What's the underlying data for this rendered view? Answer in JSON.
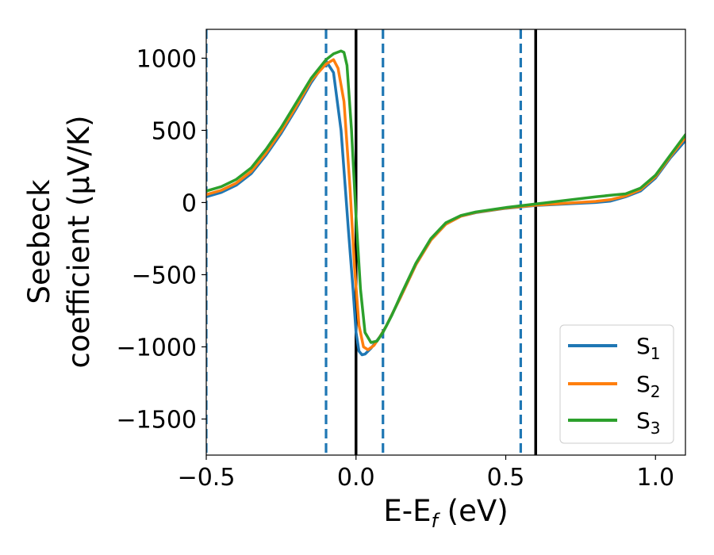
{
  "chart_data": {
    "type": "line",
    "xlabel_parts": {
      "main": "E-E",
      "sub": "f",
      "tail": " (eV)"
    },
    "ylabel_line1": "Seebeck",
    "ylabel_line2": "coefficient  (μV/K)",
    "xlim": [
      -0.5,
      1.1
    ],
    "ylim": [
      -1750,
      1200
    ],
    "xticks": [
      -0.5,
      0.0,
      0.5,
      1.0
    ],
    "xtick_labels": [
      "−0.5",
      "0.0",
      "0.5",
      "1.0"
    ],
    "yticks": [
      -1500,
      -1000,
      -500,
      0,
      500,
      1000
    ],
    "ytick_labels": [
      "−1500",
      "−1000",
      "−500",
      "0",
      "500",
      "1000"
    ],
    "grid": false,
    "legend_position": "lower-right",
    "vlines": [
      {
        "x": -0.5,
        "style": "dashed",
        "color": "#1f77b4"
      },
      {
        "x": -0.1,
        "style": "dashed",
        "color": "#1f77b4"
      },
      {
        "x": 0.0,
        "style": "solid",
        "color": "#000000"
      },
      {
        "x": 0.09,
        "style": "dashed",
        "color": "#1f77b4"
      },
      {
        "x": 0.55,
        "style": "dashed",
        "color": "#1f77b4"
      },
      {
        "x": 0.6,
        "style": "solid",
        "color": "#000000"
      }
    ],
    "series": [
      {
        "name": "S",
        "sub": "1",
        "color": "#1f77b4",
        "points": [
          [
            -0.5,
            40
          ],
          [
            -0.45,
            70
          ],
          [
            -0.4,
            120
          ],
          [
            -0.35,
            200
          ],
          [
            -0.3,
            330
          ],
          [
            -0.25,
            480
          ],
          [
            -0.2,
            650
          ],
          [
            -0.15,
            830
          ],
          [
            -0.1,
            980
          ],
          [
            -0.075,
            900
          ],
          [
            -0.05,
            500
          ],
          [
            -0.025,
            -200
          ],
          [
            -0.01,
            -600
          ],
          [
            0.0,
            -900
          ],
          [
            0.01,
            -1030
          ],
          [
            0.02,
            -1055
          ],
          [
            0.03,
            -1050
          ],
          [
            0.05,
            -1010
          ],
          [
            0.08,
            -930
          ],
          [
            0.1,
            -860
          ],
          [
            0.15,
            -650
          ],
          [
            0.2,
            -430
          ],
          [
            0.25,
            -260
          ],
          [
            0.3,
            -150
          ],
          [
            0.35,
            -95
          ],
          [
            0.4,
            -70
          ],
          [
            0.5,
            -40
          ],
          [
            0.6,
            -20
          ],
          [
            0.7,
            -10
          ],
          [
            0.8,
            0
          ],
          [
            0.85,
            10
          ],
          [
            0.9,
            40
          ],
          [
            0.95,
            80
          ],
          [
            1.0,
            170
          ],
          [
            1.05,
            310
          ],
          [
            1.1,
            430
          ]
        ]
      },
      {
        "name": "S",
        "sub": "2",
        "color": "#ff7f0e",
        "points": [
          [
            -0.5,
            55
          ],
          [
            -0.45,
            85
          ],
          [
            -0.4,
            135
          ],
          [
            -0.35,
            215
          ],
          [
            -0.3,
            345
          ],
          [
            -0.25,
            495
          ],
          [
            -0.2,
            665
          ],
          [
            -0.15,
            845
          ],
          [
            -0.1,
            960
          ],
          [
            -0.075,
            990
          ],
          [
            -0.06,
            930
          ],
          [
            -0.04,
            700
          ],
          [
            -0.02,
            100
          ],
          [
            -0.005,
            -450
          ],
          [
            0.01,
            -850
          ],
          [
            0.025,
            -1000
          ],
          [
            0.04,
            -1020
          ],
          [
            0.06,
            -990
          ],
          [
            0.08,
            -930
          ],
          [
            0.1,
            -860
          ],
          [
            0.15,
            -650
          ],
          [
            0.2,
            -430
          ],
          [
            0.25,
            -260
          ],
          [
            0.3,
            -150
          ],
          [
            0.35,
            -95
          ],
          [
            0.4,
            -68
          ],
          [
            0.5,
            -38
          ],
          [
            0.6,
            -18
          ],
          [
            0.7,
            -5
          ],
          [
            0.8,
            8
          ],
          [
            0.85,
            20
          ],
          [
            0.9,
            45
          ],
          [
            0.95,
            90
          ],
          [
            1.0,
            180
          ],
          [
            1.05,
            320
          ],
          [
            1.1,
            450
          ]
        ]
      },
      {
        "name": "S",
        "sub": "3",
        "color": "#2ca02c",
        "points": [
          [
            -0.5,
            80
          ],
          [
            -0.45,
            110
          ],
          [
            -0.4,
            160
          ],
          [
            -0.35,
            240
          ],
          [
            -0.3,
            370
          ],
          [
            -0.25,
            520
          ],
          [
            -0.2,
            690
          ],
          [
            -0.15,
            860
          ],
          [
            -0.1,
            990
          ],
          [
            -0.075,
            1030
          ],
          [
            -0.05,
            1050
          ],
          [
            -0.04,
            1040
          ],
          [
            -0.03,
            950
          ],
          [
            -0.015,
            500
          ],
          [
            0.0,
            -100
          ],
          [
            0.015,
            -600
          ],
          [
            0.03,
            -900
          ],
          [
            0.05,
            -970
          ],
          [
            0.07,
            -960
          ],
          [
            0.09,
            -900
          ],
          [
            0.12,
            -780
          ],
          [
            0.15,
            -640
          ],
          [
            0.2,
            -420
          ],
          [
            0.25,
            -250
          ],
          [
            0.3,
            -140
          ],
          [
            0.35,
            -90
          ],
          [
            0.4,
            -65
          ],
          [
            0.5,
            -35
          ],
          [
            0.6,
            -10
          ],
          [
            0.7,
            15
          ],
          [
            0.8,
            40
          ],
          [
            0.85,
            50
          ],
          [
            0.9,
            60
          ],
          [
            0.95,
            100
          ],
          [
            1.0,
            190
          ],
          [
            1.05,
            330
          ],
          [
            1.1,
            470
          ]
        ]
      }
    ]
  }
}
